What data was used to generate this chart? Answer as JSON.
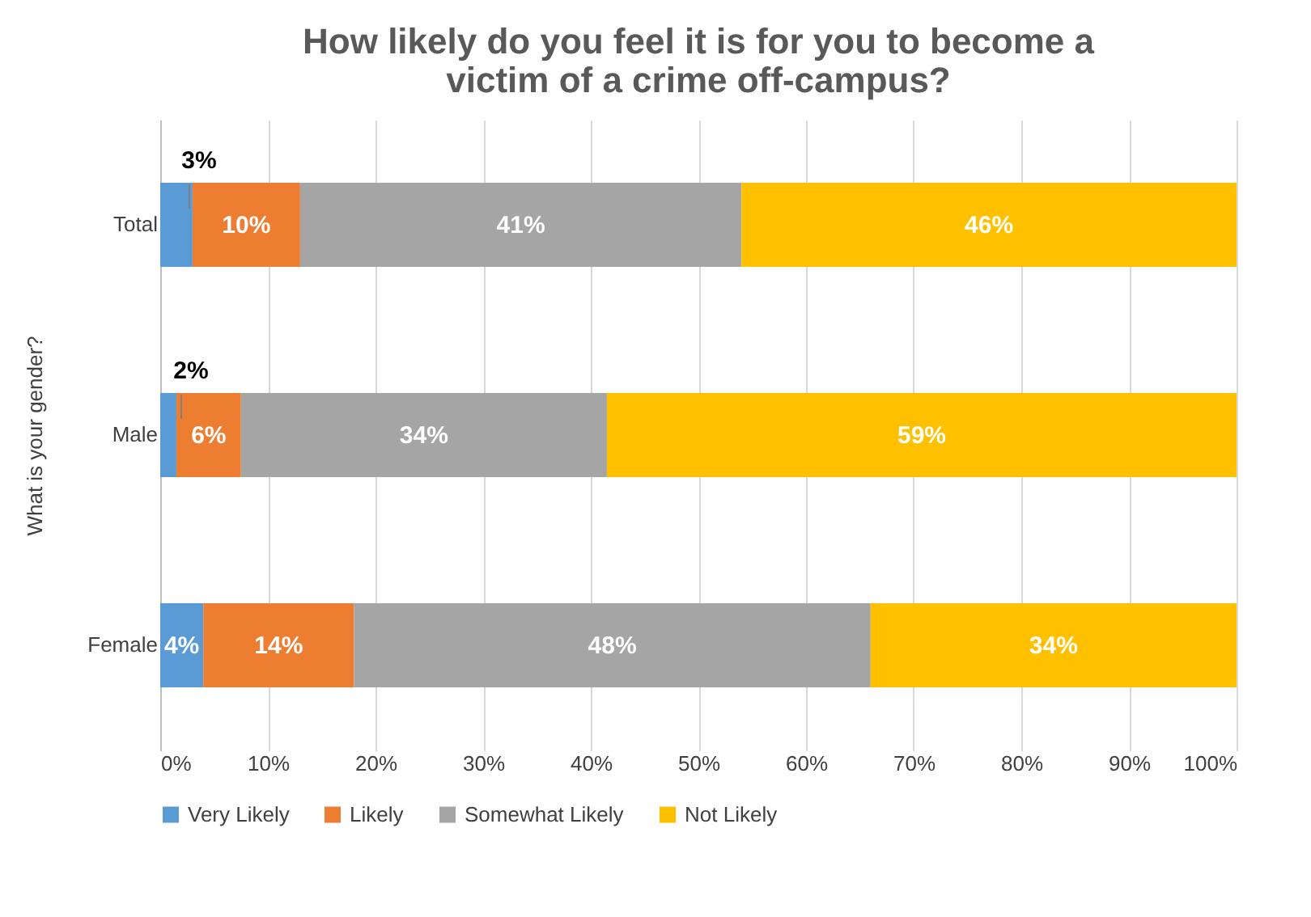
{
  "chart_data": {
    "type": "bar",
    "orientation": "horizontal",
    "stacked": true,
    "title": "How likely do you feel it is for you to become a victim of a crime off-campus?",
    "ylabel": "What is your gender?",
    "categories": [
      "Total",
      "Male",
      "Female"
    ],
    "series": [
      {
        "name": "Very Likely",
        "color": "#5b9bd5",
        "values": [
          3,
          1.5,
          4
        ],
        "value_labels": [
          "3%",
          "2%",
          "4%"
        ]
      },
      {
        "name": "Likely",
        "color": "#ed7d31",
        "values": [
          10,
          6,
          14
        ],
        "value_labels": [
          "10%",
          "6%",
          "14%"
        ]
      },
      {
        "name": "Somewhat Likely",
        "color": "#a5a5a5",
        "values": [
          41,
          34,
          48
        ],
        "value_labels": [
          "41%",
          "34%",
          "48%"
        ]
      },
      {
        "name": "Not Likely",
        "color": "#ffc000",
        "values": [
          46,
          58.5,
          34
        ],
        "value_labels": [
          "46%",
          "59%",
          "34%"
        ]
      }
    ],
    "xlim": [
      0,
      100
    ],
    "xticks": [
      {
        "value": 0,
        "label": "0%"
      },
      {
        "value": 10,
        "label": "10%"
      },
      {
        "value": 20,
        "label": "20%"
      },
      {
        "value": 30,
        "label": "30%"
      },
      {
        "value": 40,
        "label": "40%"
      },
      {
        "value": 50,
        "label": "50%"
      },
      {
        "value": 60,
        "label": "60%"
      },
      {
        "value": 70,
        "label": "70%"
      },
      {
        "value": 80,
        "label": "80%"
      },
      {
        "value": 90,
        "label": "90%"
      },
      {
        "value": 100,
        "label": "100%"
      }
    ],
    "grid": "x",
    "legend": "bottom"
  }
}
